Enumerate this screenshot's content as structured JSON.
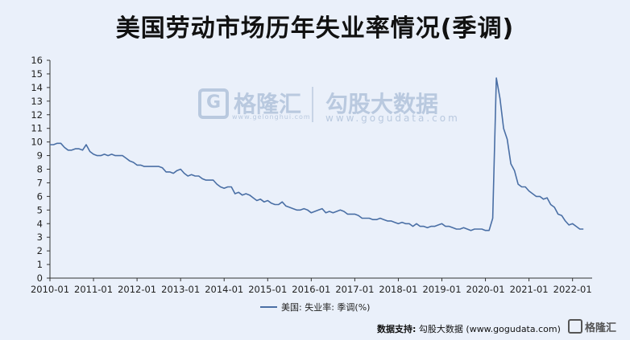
{
  "title": "美国劳动市场历年失业率情况(季调)",
  "watermark": {
    "logo_name": "格隆汇",
    "logo_url": "www.gelonghui.com",
    "brand": "勾股大数据",
    "brand_url": "www.gogudata.com"
  },
  "footer": {
    "source_label": "数据支持:",
    "source_text": "勾股大数据  (www.gogudata.com)"
  },
  "corner_brand": "格隆汇",
  "colors": {
    "line": "#4a6fa5",
    "background": "#eaf0fa",
    "axis": "#333333"
  },
  "chart_data": {
    "type": "line",
    "title": "美国劳动市场历年失业率情况(季调)",
    "xlabel": "",
    "ylabel": "",
    "ylim": [
      0,
      16
    ],
    "yticks": [
      "0",
      "1",
      "2",
      "3",
      "4",
      "5",
      "6",
      "7",
      "8",
      "9",
      "10",
      "11",
      "12",
      "13",
      "14",
      "15",
      "16"
    ],
    "xticks": [
      "2010-01",
      "2011-01",
      "2012-01",
      "2013-01",
      "2014-01",
      "2015-01",
      "2016-01",
      "2017-01",
      "2018-01",
      "2019-01",
      "2020-01",
      "2021-01",
      "2022-01"
    ],
    "grid": false,
    "legend_position": "bottom-center",
    "series": [
      {
        "name": "美国: 失业率: 季调(%)",
        "x": [
          "2010-01",
          "2010-02",
          "2010-03",
          "2010-04",
          "2010-05",
          "2010-06",
          "2010-07",
          "2010-08",
          "2010-09",
          "2010-10",
          "2010-11",
          "2010-12",
          "2011-01",
          "2011-02",
          "2011-03",
          "2011-04",
          "2011-05",
          "2011-06",
          "2011-07",
          "2011-08",
          "2011-09",
          "2011-10",
          "2011-11",
          "2011-12",
          "2012-01",
          "2012-02",
          "2012-03",
          "2012-04",
          "2012-05",
          "2012-06",
          "2012-07",
          "2012-08",
          "2012-09",
          "2012-10",
          "2012-11",
          "2012-12",
          "2013-01",
          "2013-02",
          "2013-03",
          "2013-04",
          "2013-05",
          "2013-06",
          "2013-07",
          "2013-08",
          "2013-09",
          "2013-10",
          "2013-11",
          "2013-12",
          "2014-01",
          "2014-02",
          "2014-03",
          "2014-04",
          "2014-05",
          "2014-06",
          "2014-07",
          "2014-08",
          "2014-09",
          "2014-10",
          "2014-11",
          "2014-12",
          "2015-01",
          "2015-02",
          "2015-03",
          "2015-04",
          "2015-05",
          "2015-06",
          "2015-07",
          "2015-08",
          "2015-09",
          "2015-10",
          "2015-11",
          "2015-12",
          "2016-01",
          "2016-02",
          "2016-03",
          "2016-04",
          "2016-05",
          "2016-06",
          "2016-07",
          "2016-08",
          "2016-09",
          "2016-10",
          "2016-11",
          "2016-12",
          "2017-01",
          "2017-02",
          "2017-03",
          "2017-04",
          "2017-05",
          "2017-06",
          "2017-07",
          "2017-08",
          "2017-09",
          "2017-10",
          "2017-11",
          "2017-12",
          "2018-01",
          "2018-02",
          "2018-03",
          "2018-04",
          "2018-05",
          "2018-06",
          "2018-07",
          "2018-08",
          "2018-09",
          "2018-10",
          "2018-11",
          "2018-12",
          "2019-01",
          "2019-02",
          "2019-03",
          "2019-04",
          "2019-05",
          "2019-06",
          "2019-07",
          "2019-08",
          "2019-09",
          "2019-10",
          "2019-11",
          "2019-12",
          "2020-01",
          "2020-02",
          "2020-03",
          "2020-04",
          "2020-05",
          "2020-06",
          "2020-07",
          "2020-08",
          "2020-09",
          "2020-10",
          "2020-11",
          "2020-12",
          "2021-01",
          "2021-02",
          "2021-03",
          "2021-04",
          "2021-05",
          "2021-06",
          "2021-07",
          "2021-08",
          "2021-09",
          "2021-10",
          "2021-11",
          "2021-12",
          "2022-01",
          "2022-02",
          "2022-03",
          "2022-04"
        ],
        "values": [
          9.8,
          9.8,
          9.9,
          9.9,
          9.6,
          9.4,
          9.4,
          9.5,
          9.5,
          9.4,
          9.8,
          9.3,
          9.1,
          9.0,
          9.0,
          9.1,
          9.0,
          9.1,
          9.0,
          9.0,
          9.0,
          8.8,
          8.6,
          8.5,
          8.3,
          8.3,
          8.2,
          8.2,
          8.2,
          8.2,
          8.2,
          8.1,
          7.8,
          7.8,
          7.7,
          7.9,
          8.0,
          7.7,
          7.5,
          7.6,
          7.5,
          7.5,
          7.3,
          7.2,
          7.2,
          7.2,
          6.9,
          6.7,
          6.6,
          6.7,
          6.7,
          6.2,
          6.3,
          6.1,
          6.2,
          6.1,
          5.9,
          5.7,
          5.8,
          5.6,
          5.7,
          5.5,
          5.4,
          5.4,
          5.6,
          5.3,
          5.2,
          5.1,
          5.0,
          5.0,
          5.1,
          5.0,
          4.8,
          4.9,
          5.0,
          5.1,
          4.8,
          4.9,
          4.8,
          4.9,
          5.0,
          4.9,
          4.7,
          4.7,
          4.7,
          4.6,
          4.4,
          4.4,
          4.4,
          4.3,
          4.3,
          4.4,
          4.3,
          4.2,
          4.2,
          4.1,
          4.0,
          4.1,
          4.0,
          4.0,
          3.8,
          4.0,
          3.8,
          3.8,
          3.7,
          3.8,
          3.8,
          3.9,
          4.0,
          3.8,
          3.8,
          3.7,
          3.6,
          3.6,
          3.7,
          3.6,
          3.5,
          3.6,
          3.6,
          3.6,
          3.5,
          3.5,
          4.4,
          14.7,
          13.2,
          11.0,
          10.2,
          8.4,
          7.9,
          6.9,
          6.7,
          6.7,
          6.4,
          6.2,
          6.0,
          6.0,
          5.8,
          5.9,
          5.4,
          5.2,
          4.7,
          4.6,
          4.2,
          3.9,
          4.0,
          3.8,
          3.6,
          3.6
        ]
      }
    ]
  }
}
